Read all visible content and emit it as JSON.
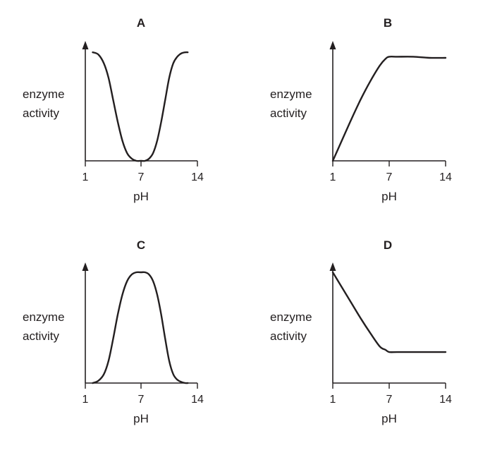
{
  "chart_data": [
    {
      "type": "line",
      "panel": "A",
      "ylabel": [
        "enzyme",
        "activity"
      ],
      "xlabel": "pH",
      "xticks": [
        "1",
        "7",
        "14"
      ],
      "xlim": [
        1,
        14
      ],
      "ylim": [
        0,
        1
      ],
      "series": [
        {
          "x": [
            1.8,
            2.4,
            3.0,
            3.5,
            4.0,
            4.5,
            5.0,
            5.5,
            6.0,
            6.5,
            7.0,
            7.5,
            8.0,
            8.5,
            9.0,
            9.5,
            10.0,
            10.5,
            11.0,
            11.5,
            12.0,
            12.5,
            12.8
          ],
          "y": [
            0.98,
            0.96,
            0.88,
            0.75,
            0.55,
            0.35,
            0.18,
            0.07,
            0.02,
            0.0,
            0.0,
            0.0,
            0.02,
            0.07,
            0.18,
            0.35,
            0.55,
            0.75,
            0.88,
            0.94,
            0.97,
            0.98,
            0.98
          ]
        }
      ]
    },
    {
      "type": "line",
      "panel": "B",
      "ylabel": [
        "enzyme",
        "activity"
      ],
      "xlabel": "pH",
      "xticks": [
        "1",
        "7",
        "14"
      ],
      "xlim": [
        1,
        14
      ],
      "ylim": [
        0,
        1
      ],
      "series": [
        {
          "x": [
            1,
            2,
            3,
            4,
            5,
            6,
            6.6,
            7,
            8,
            10,
            12,
            14
          ],
          "y": [
            0.0,
            0.19,
            0.38,
            0.56,
            0.72,
            0.86,
            0.92,
            0.94,
            0.94,
            0.94,
            0.93,
            0.93
          ]
        }
      ]
    },
    {
      "type": "line",
      "panel": "C",
      "ylabel": [
        "enzyme",
        "activity"
      ],
      "xlabel": "pH",
      "xticks": [
        "1",
        "7",
        "14"
      ],
      "xlim": [
        1,
        14
      ],
      "ylim": [
        0,
        1
      ],
      "series": [
        {
          "x": [
            1.8,
            2.4,
            3.0,
            3.5,
            4.0,
            4.5,
            5.0,
            5.5,
            6.0,
            6.5,
            7.0,
            7.5,
            8.0,
            8.5,
            9.0,
            9.5,
            10.0,
            10.5,
            11.0,
            11.5,
            12.0,
            12.5,
            12.8
          ],
          "y": [
            0.0,
            0.02,
            0.08,
            0.2,
            0.4,
            0.62,
            0.8,
            0.92,
            0.98,
            1.0,
            1.0,
            1.0,
            0.98,
            0.92,
            0.8,
            0.62,
            0.4,
            0.2,
            0.08,
            0.03,
            0.01,
            0.0,
            0.0
          ]
        }
      ]
    },
    {
      "type": "line",
      "panel": "D",
      "ylabel": [
        "enzyme",
        "activity"
      ],
      "xlabel": "pH",
      "xticks": [
        "1",
        "7",
        "14"
      ],
      "xlim": [
        1,
        14
      ],
      "ylim": [
        0,
        1
      ],
      "series": [
        {
          "x": [
            1,
            2,
            3,
            4,
            5,
            6,
            6.6,
            7,
            8,
            10,
            12,
            14
          ],
          "y": [
            1.0,
            0.86,
            0.72,
            0.58,
            0.45,
            0.33,
            0.3,
            0.28,
            0.28,
            0.28,
            0.28,
            0.28
          ]
        }
      ]
    }
  ]
}
